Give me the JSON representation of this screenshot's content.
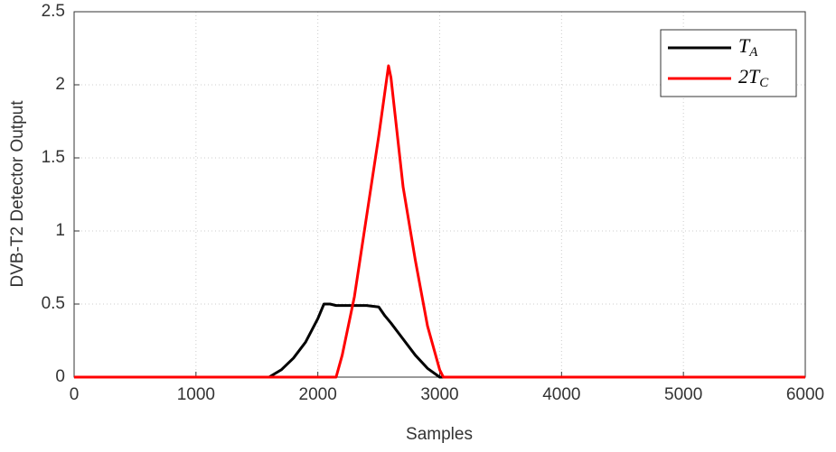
{
  "chart_data": {
    "type": "line",
    "xlabel": "Samples",
    "ylabel": "DVB-T2 Detector Output",
    "x": [
      0,
      1600,
      1700,
      1800,
      1900,
      2000,
      2050,
      2100,
      2150,
      2200,
      2300,
      2400,
      2500,
      2550,
      2580,
      2600,
      2700,
      2800,
      2900,
      3000,
      3030,
      6000
    ],
    "series": [
      {
        "name": "TA",
        "color": "#000000",
        "values": [
          0,
          0,
          0.05,
          0.13,
          0.24,
          0.4,
          0.5,
          0.5,
          0.49,
          0.49,
          0.49,
          0.49,
          0.48,
          0.42,
          0.39,
          0.37,
          0.26,
          0.15,
          0.06,
          0,
          0,
          0
        ]
      },
      {
        "name": "2TC",
        "color": "#ff0000",
        "values": [
          0,
          0,
          0,
          0,
          0,
          0,
          0,
          0,
          0,
          0.15,
          0.55,
          1.1,
          1.65,
          1.95,
          2.13,
          2.05,
          1.3,
          0.8,
          0.35,
          0.05,
          0,
          0
        ]
      }
    ],
    "xlim": [
      0,
      6000
    ],
    "xticks": [
      0,
      1000,
      2000,
      3000,
      4000,
      5000,
      6000
    ],
    "ylim": [
      0,
      2.5
    ],
    "yticks": [
      0,
      0.5,
      1,
      1.5,
      2,
      2.5
    ],
    "grid": true,
    "legend": "upper right"
  }
}
